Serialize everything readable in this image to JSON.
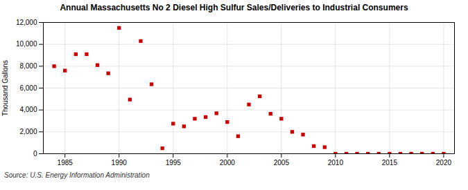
{
  "chart_data": {
    "type": "scatter",
    "title": "Annual Massachusetts No 2 Diesel High Sulfur Sales/Deliveries to Industrial Consumers",
    "ylabel": "Thousand Gallons",
    "source": "Source: U.S. Energy Information Administration",
    "color": "#cc0000",
    "marker": "square",
    "grid": true,
    "xlim": [
      1983,
      2021
    ],
    "ylim": [
      0,
      12000
    ],
    "xticks": [
      1985,
      1990,
      1995,
      2000,
      2005,
      2010,
      2015,
      2020
    ],
    "yticks": [
      0,
      {
        "value": 2000,
        "label": "2,000"
      },
      {
        "value": 4000,
        "label": "4,000"
      },
      {
        "value": 6000,
        "label": "6,000"
      },
      {
        "value": 8000,
        "label": "8,000"
      },
      {
        "value": 10000,
        "label": "10,000"
      },
      {
        "value": 12000,
        "label": "12,000"
      }
    ],
    "x": [
      1984,
      1985,
      1986,
      1987,
      1988,
      1989,
      1990,
      1991,
      1992,
      1993,
      1994,
      1995,
      1996,
      1997,
      1998,
      1999,
      2000,
      2001,
      2002,
      2003,
      2004,
      2005,
      2006,
      2007,
      2008,
      2009,
      2010,
      2011,
      2012,
      2013,
      2014,
      2015,
      2016,
      2017,
      2018,
      2019,
      2020
    ],
    "values": [
      8000,
      7600,
      9100,
      9100,
      8100,
      7350,
      11500,
      4950,
      10300,
      6350,
      500,
      2750,
      2500,
      3200,
      3350,
      3700,
      2900,
      1600,
      4500,
      5250,
      3650,
      3200,
      2000,
      1750,
      700,
      600,
      0,
      0,
      0,
      0,
      0,
      0,
      0,
      0,
      0,
      0,
      0
    ]
  }
}
